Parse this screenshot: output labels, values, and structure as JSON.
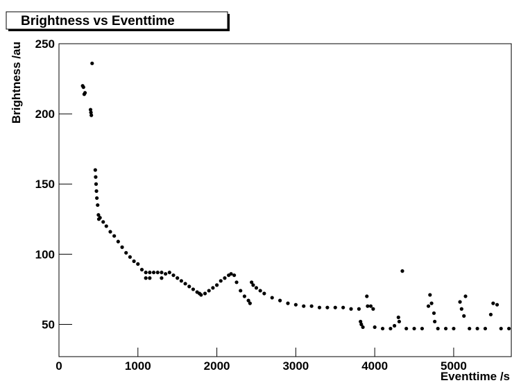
{
  "chart_data": {
    "type": "scatter",
    "title": "Brightness vs Eventtime",
    "x_label": "Eventtime /s",
    "y_label": "Brightness /au",
    "color": "#000000",
    "xlim": [
      0,
      5730
    ],
    "ylim": [
      27,
      250
    ],
    "xticks": [
      0,
      1000,
      2000,
      3000,
      4000,
      5000
    ],
    "yticks": [
      50,
      100,
      150,
      200,
      250
    ],
    "x": [
      300,
      310,
      320,
      330,
      400,
      405,
      410,
      420,
      460,
      465,
      470,
      475,
      480,
      490,
      500,
      505,
      520,
      560,
      600,
      650,
      700,
      750,
      800,
      850,
      900,
      950,
      1000,
      1050,
      1100,
      1100,
      1150,
      1150,
      1200,
      1250,
      1300,
      1300,
      1350,
      1400,
      1450,
      1500,
      1550,
      1600,
      1650,
      1700,
      1750,
      1780,
      1800,
      1850,
      1900,
      1950,
      2000,
      2050,
      2100,
      2150,
      2180,
      2220,
      2250,
      2300,
      2350,
      2400,
      2420,
      2440,
      2460,
      2500,
      2550,
      2600,
      2700,
      2800,
      2900,
      3000,
      3100,
      3200,
      3300,
      3400,
      3500,
      3600,
      3700,
      3800,
      3820,
      3830,
      3850,
      3900,
      3910,
      3950,
      3980,
      4000,
      4100,
      4200,
      4250,
      4300,
      4310,
      4350,
      4400,
      4500,
      4600,
      4680,
      4700,
      4720,
      4750,
      4760,
      4800,
      4900,
      5000,
      5080,
      5100,
      5130,
      5150,
      5200,
      5300,
      5400,
      5470,
      5500,
      5550,
      5600,
      5700
    ],
    "values": [
      220,
      219,
      214,
      215,
      203,
      201,
      199,
      236,
      160,
      155,
      150,
      145,
      140,
      135,
      128,
      125,
      126,
      123,
      120,
      116,
      113,
      109,
      105,
      101,
      98,
      95,
      93,
      89,
      87,
      83,
      87,
      83,
      87,
      87,
      87,
      83,
      86,
      87,
      85,
      83,
      81,
      79,
      77,
      75,
      73,
      72,
      71,
      72,
      74,
      76,
      78,
      81,
      83,
      85,
      86,
      85,
      80,
      74,
      70,
      67,
      65,
      80,
      78,
      76,
      74,
      72,
      69,
      67,
      65,
      64,
      63,
      63,
      62,
      62,
      62,
      62,
      61,
      61,
      52,
      50,
      48,
      70,
      63,
      63,
      61,
      48,
      47,
      47,
      49,
      55,
      52,
      88,
      47,
      47,
      47,
      63,
      71,
      65,
      58,
      52,
      47,
      47,
      47,
      66,
      61,
      56,
      70,
      47,
      47,
      47,
      57,
      65,
      64,
      47,
      47
    ]
  }
}
